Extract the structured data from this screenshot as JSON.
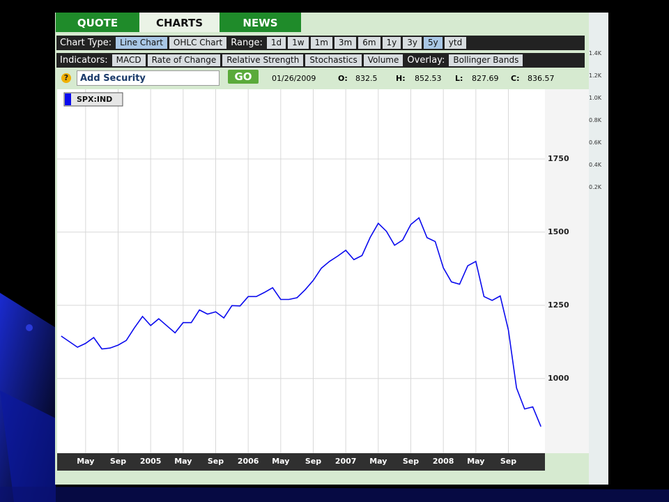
{
  "tabs": [
    "QUOTE",
    "CHARTS",
    "NEWS"
  ],
  "chart_type": {
    "label": "Chart Type:",
    "options": [
      "Line Chart",
      "OHLC Chart"
    ]
  },
  "range": {
    "label": "Range:",
    "options": [
      "1d",
      "1w",
      "1m",
      "3m",
      "6m",
      "1y",
      "3y",
      "5y",
      "ytd"
    ]
  },
  "indicators": {
    "label": "Indicators:",
    "options": [
      "MACD",
      "Rate of Change",
      "Relative Strength",
      "Stochastics",
      "Volume"
    ]
  },
  "overlay": {
    "label": "Overlay:",
    "options": [
      "Bollinger Bands"
    ]
  },
  "search": {
    "placeholder": "Add Security",
    "button": "GO",
    "help": "?"
  },
  "quote": {
    "date": "01/26/2009",
    "open_label": "O:",
    "open": 832.5,
    "high_label": "H:",
    "high": 852.53,
    "low_label": "L:",
    "low": 827.69,
    "close_label": "C:",
    "close": 836.57
  },
  "side_labels": [
    "1.4K",
    "1.2K",
    "1.0K",
    "0.8K",
    "0.6K",
    "0.4K",
    "0.2K"
  ],
  "chart_data": {
    "type": "line",
    "categories": [
      null,
      null,
      null,
      "May",
      null,
      null,
      null,
      "Sep",
      null,
      null,
      null,
      "2005",
      null,
      null,
      null,
      "May",
      null,
      null,
      null,
      "Sep",
      null,
      null,
      null,
      "2006",
      null,
      null,
      null,
      "May",
      null,
      null,
      null,
      "Sep",
      null,
      null,
      null,
      "2007",
      null,
      null,
      null,
      "May",
      null,
      null,
      null,
      "Sep",
      null,
      null,
      null,
      "2008",
      null,
      null,
      null,
      "May",
      null,
      null,
      null,
      "Sep",
      null,
      null,
      null,
      null
    ],
    "series": [
      {
        "name": "SPX:IND",
        "color": "#0a0aee",
        "values": [
          1145,
          1126,
          1107,
          1120,
          1140,
          1101,
          1104,
          1114,
          1130,
          1173,
          1212,
          1181,
          1204,
          1180,
          1156,
          1191,
          1191,
          1234,
          1220,
          1228,
          1207,
          1249,
          1248,
          1280,
          1280,
          1294,
          1310,
          1270,
          1270,
          1276,
          1303,
          1335,
          1377,
          1400,
          1418,
          1438,
          1406,
          1420,
          1482,
          1530,
          1503,
          1455,
          1473,
          1526,
          1549,
          1481,
          1468,
          1378,
          1330,
          1322,
          1385,
          1400,
          1280,
          1267,
          1282,
          1166,
          968,
          896,
          903,
          836
        ]
      }
    ],
    "ylim": [
      745,
      1988
    ],
    "yticks": [
      1000,
      1250,
      1500,
      1750
    ],
    "grid": true
  }
}
